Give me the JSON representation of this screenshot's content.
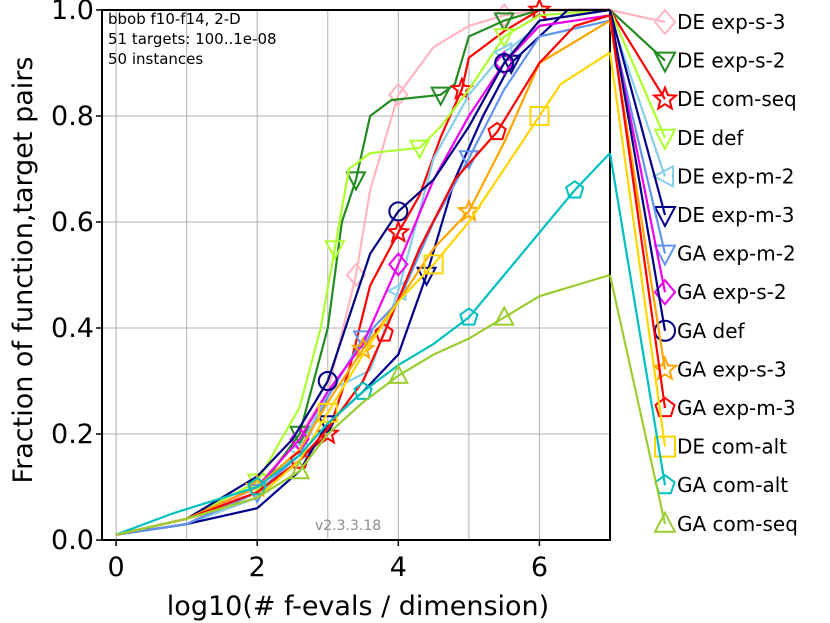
{
  "chart_data": {
    "type": "line",
    "xlabel": "log10(# f-evals / dimension)",
    "ylabel": "Fraction of function,target pairs",
    "xlim": [
      -0.2,
      7.0
    ],
    "ylim": [
      0.0,
      1.0
    ],
    "xticks": [
      0,
      2,
      4,
      6
    ],
    "xtick_labels": [
      "0",
      "2",
      "4",
      "6"
    ],
    "yticks": [
      0.0,
      0.2,
      0.4,
      0.6,
      0.8,
      1.0
    ],
    "ytick_labels": [
      "0.0",
      "0.2",
      "0.4",
      "0.6",
      "0.8",
      "1.0"
    ],
    "grid": true,
    "annotations": [
      "bbob f10-f14, 2-D",
      "51 targets: 100..1e-08",
      "50 instances"
    ],
    "version": "v2.3.3.18",
    "legend_position": "right",
    "series": [
      {
        "name": "DE exp-s-3",
        "color": "#ffb6c1",
        "marker": "diamond",
        "points": [
          [
            0,
            0.01
          ],
          [
            1,
            0.03
          ],
          [
            2,
            0.1
          ],
          [
            2.5,
            0.18
          ],
          [
            3,
            0.28
          ],
          [
            3.4,
            0.5
          ],
          [
            3.6,
            0.66
          ],
          [
            3.8,
            0.75
          ],
          [
            4,
            0.84
          ],
          [
            4.5,
            0.93
          ],
          [
            5,
            0.97
          ],
          [
            5.5,
            0.99
          ],
          [
            6,
            1.0
          ],
          [
            7,
            1.0
          ]
        ],
        "legend_end": 0.98
      },
      {
        "name": "DE exp-s-2",
        "color": "#228b22",
        "marker": "tri_down",
        "points": [
          [
            0,
            0.01
          ],
          [
            1,
            0.03
          ],
          [
            2,
            0.09
          ],
          [
            2.6,
            0.2
          ],
          [
            3,
            0.4
          ],
          [
            3.2,
            0.6
          ],
          [
            3.4,
            0.68
          ],
          [
            3.6,
            0.8
          ],
          [
            3.9,
            0.83
          ],
          [
            4.6,
            0.84
          ],
          [
            4.8,
            0.86
          ],
          [
            5,
            0.95
          ],
          [
            5.5,
            0.98
          ],
          [
            6,
            1.0
          ],
          [
            7,
            1.0
          ]
        ],
        "legend_end": 0.93
      },
      {
        "name": "DE com-seq",
        "color": "#ff0000",
        "marker": "star",
        "points": [
          [
            0,
            0.01
          ],
          [
            1,
            0.04
          ],
          [
            2,
            0.09
          ],
          [
            2.6,
            0.15
          ],
          [
            3,
            0.2
          ],
          [
            3.3,
            0.32
          ],
          [
            3.6,
            0.48
          ],
          [
            4,
            0.58
          ],
          [
            4.3,
            0.65
          ],
          [
            4.6,
            0.76
          ],
          [
            4.9,
            0.85
          ],
          [
            5,
            0.91
          ],
          [
            5.5,
            0.96
          ],
          [
            6,
            1.0
          ],
          [
            7,
            1.0
          ]
        ],
        "legend_end": 0.84
      },
      {
        "name": "DE def",
        "color": "#adff2f",
        "marker": "tri_down",
        "points": [
          [
            0,
            0.01
          ],
          [
            1,
            0.04
          ],
          [
            2,
            0.11
          ],
          [
            2.6,
            0.25
          ],
          [
            2.9,
            0.4
          ],
          [
            3.1,
            0.55
          ],
          [
            3.3,
            0.7
          ],
          [
            3.6,
            0.73
          ],
          [
            4.3,
            0.74
          ],
          [
            4.6,
            0.78
          ],
          [
            5,
            0.85
          ],
          [
            5.5,
            0.95
          ],
          [
            6,
            0.99
          ],
          [
            7,
            1.0
          ]
        ],
        "legend_end": 0.76
      },
      {
        "name": "DE exp-m-2",
        "color": "#87ceeb",
        "marker": "tri_left",
        "points": [
          [
            0,
            0.01
          ],
          [
            1,
            0.03
          ],
          [
            2,
            0.08
          ],
          [
            2.6,
            0.17
          ],
          [
            3,
            0.28
          ],
          [
            3.6,
            0.32
          ],
          [
            4,
            0.47
          ],
          [
            4.5,
            0.72
          ],
          [
            5,
            0.84
          ],
          [
            5.5,
            0.92
          ],
          [
            6,
            0.97
          ],
          [
            7,
            0.99
          ]
        ],
        "legend_end": 0.68
      },
      {
        "name": "DE exp-m-3",
        "color": "#00008b",
        "marker": "tri_down",
        "points": [
          [
            0,
            0.01
          ],
          [
            1,
            0.03
          ],
          [
            2,
            0.06
          ],
          [
            2.6,
            0.13
          ],
          [
            3,
            0.22
          ],
          [
            3.5,
            0.28
          ],
          [
            4,
            0.35
          ],
          [
            4.4,
            0.5
          ],
          [
            4.8,
            0.68
          ],
          [
            5.2,
            0.8
          ],
          [
            5.6,
            0.9
          ],
          [
            6.4,
            1.0
          ],
          [
            7,
            1.0
          ]
        ],
        "legend_end": 0.6
      },
      {
        "name": "GA exp-m-2",
        "color": "#6495ed",
        "marker": "tri_down",
        "points": [
          [
            0,
            0.01
          ],
          [
            1,
            0.03
          ],
          [
            2,
            0.09
          ],
          [
            2.6,
            0.16
          ],
          [
            3,
            0.27
          ],
          [
            3.5,
            0.38
          ],
          [
            4,
            0.45
          ],
          [
            4.5,
            0.6
          ],
          [
            5,
            0.72
          ],
          [
            5.5,
            0.85
          ],
          [
            6,
            0.95
          ],
          [
            7,
            0.98
          ]
        ],
        "legend_end": 0.52
      },
      {
        "name": "GA exp-s-2",
        "color": "#ee00ee",
        "marker": "diamond",
        "points": [
          [
            0,
            0.01
          ],
          [
            1,
            0.04
          ],
          [
            2,
            0.1
          ],
          [
            2.6,
            0.19
          ],
          [
            3,
            0.28
          ],
          [
            3.5,
            0.37
          ],
          [
            4,
            0.52
          ],
          [
            4.5,
            0.68
          ],
          [
            5,
            0.8
          ],
          [
            5.5,
            0.9
          ],
          [
            6,
            0.97
          ],
          [
            7,
            0.99
          ]
        ],
        "legend_end": 0.45
      },
      {
        "name": "GA def",
        "color": "#000080",
        "marker": "circle",
        "points": [
          [
            0,
            0.01
          ],
          [
            1,
            0.04
          ],
          [
            2,
            0.12
          ],
          [
            2.5,
            0.19
          ],
          [
            3,
            0.3
          ],
          [
            3.3,
            0.42
          ],
          [
            3.6,
            0.54
          ],
          [
            4,
            0.62
          ],
          [
            4.5,
            0.68
          ],
          [
            5,
            0.78
          ],
          [
            5.5,
            0.9
          ],
          [
            6,
            0.98
          ],
          [
            7,
            1.0
          ]
        ],
        "legend_end": 0.37
      },
      {
        "name": "GA exp-s-3",
        "color": "#ffa500",
        "marker": "star",
        "points": [
          [
            0,
            0.01
          ],
          [
            1,
            0.04
          ],
          [
            2,
            0.1
          ],
          [
            2.6,
            0.17
          ],
          [
            3,
            0.26
          ],
          [
            3.5,
            0.36
          ],
          [
            4,
            0.45
          ],
          [
            4.5,
            0.55
          ],
          [
            5,
            0.62
          ],
          [
            5.5,
            0.75
          ],
          [
            6,
            0.9
          ],
          [
            7,
            0.98
          ]
        ],
        "legend_end": 0.3
      },
      {
        "name": "GA exp-m-3",
        "color": "#ff0000",
        "marker": "pentagon",
        "points": [
          [
            0,
            0.01
          ],
          [
            1,
            0.04
          ],
          [
            2,
            0.09
          ],
          [
            2.6,
            0.15
          ],
          [
            3,
            0.21
          ],
          [
            3.5,
            0.3
          ],
          [
            3.8,
            0.39
          ],
          [
            4.3,
            0.55
          ],
          [
            4.8,
            0.68
          ],
          [
            5.4,
            0.77
          ],
          [
            6,
            0.9
          ],
          [
            6.5,
            0.97
          ],
          [
            7,
            0.99
          ]
        ],
        "legend_end": 0.22
      },
      {
        "name": "DE com-alt",
        "color": "#ffd700",
        "marker": "square",
        "points": [
          [
            0,
            0.01
          ],
          [
            1,
            0.04
          ],
          [
            2,
            0.08
          ],
          [
            2.6,
            0.15
          ],
          [
            3,
            0.24
          ],
          [
            3.5,
            0.35
          ],
          [
            4,
            0.45
          ],
          [
            4.5,
            0.52
          ],
          [
            5,
            0.6
          ],
          [
            5.5,
            0.7
          ],
          [
            6,
            0.8
          ],
          [
            6.3,
            0.86
          ],
          [
            7,
            0.92
          ]
        ],
        "legend_end": 0.15
      },
      {
        "name": "GA com-alt",
        "color": "#00bfbf",
        "marker": "pentagon",
        "points": [
          [
            0,
            0.01
          ],
          [
            0.8,
            0.05
          ],
          [
            2,
            0.1
          ],
          [
            2.6,
            0.16
          ],
          [
            3,
            0.22
          ],
          [
            3.5,
            0.28
          ],
          [
            4,
            0.33
          ],
          [
            4.5,
            0.37
          ],
          [
            5,
            0.42
          ],
          [
            5.5,
            0.5
          ],
          [
            6,
            0.58
          ],
          [
            6.5,
            0.66
          ],
          [
            7,
            0.73
          ]
        ],
        "legend_end": 0.07
      },
      {
        "name": "GA com-seq",
        "color": "#9acd32",
        "marker": "triangle",
        "points": [
          [
            0,
            0.01
          ],
          [
            1,
            0.04
          ],
          [
            2,
            0.08
          ],
          [
            2.6,
            0.13
          ],
          [
            3,
            0.2
          ],
          [
            3.5,
            0.26
          ],
          [
            4,
            0.31
          ],
          [
            4.5,
            0.35
          ],
          [
            5,
            0.38
          ],
          [
            5.5,
            0.42
          ],
          [
            6,
            0.46
          ],
          [
            6.5,
            0.48
          ],
          [
            7,
            0.5
          ]
        ],
        "legend_end": 0.0
      }
    ]
  }
}
